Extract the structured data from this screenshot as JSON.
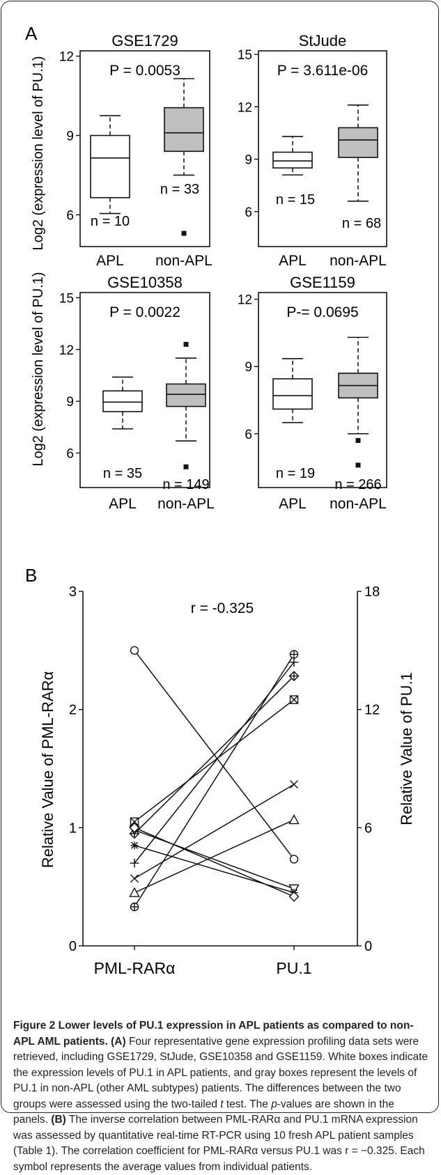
{
  "panels": {
    "A": "A",
    "B": "B"
  },
  "shared": {
    "y_label_A": "Log2 (expression level of PU.1)",
    "x_categories": [
      "APL",
      "non-APL"
    ]
  },
  "chart_data": [
    {
      "type": "box",
      "title": "GSE1729",
      "ylim": [
        4.8,
        12.2
      ],
      "yticks": [
        6,
        9,
        12
      ],
      "categories": [
        "APL",
        "non-APL"
      ],
      "boxes": [
        {
          "category": "APL",
          "fill": "#ffffff",
          "min": 6.05,
          "q1": 6.65,
          "median": 8.15,
          "q3": 9.0,
          "max": 9.75,
          "outliers": [],
          "n_label": "n = 10"
        },
        {
          "category": "non-APL",
          "fill": "#bfbfbf",
          "min": 7.5,
          "q1": 8.4,
          "median": 9.1,
          "q3": 10.05,
          "max": 11.15,
          "outliers": [
            5.3
          ],
          "n_label": "n = 33"
        }
      ],
      "p_label": "P = 0.0053"
    },
    {
      "type": "box",
      "title": "StJude",
      "ylim": [
        4.0,
        15.2
      ],
      "yticks": [
        6,
        9,
        12,
        15
      ],
      "categories": [
        "APL",
        "non-APL"
      ],
      "boxes": [
        {
          "category": "APL",
          "fill": "#ffffff",
          "min": 8.1,
          "q1": 8.5,
          "median": 8.9,
          "q3": 9.4,
          "max": 10.3,
          "outliers": [],
          "n_label": "n = 15"
        },
        {
          "category": "non-APL",
          "fill": "#bfbfbf",
          "min": 6.6,
          "q1": 9.1,
          "median": 10.1,
          "q3": 10.8,
          "max": 12.1,
          "outliers": [],
          "n_label": "n = 68"
        }
      ],
      "p_label": "P = 3.611e-06"
    },
    {
      "type": "box",
      "title": "GSE10358",
      "ylim": [
        4.0,
        15.3
      ],
      "yticks": [
        6,
        9,
        12,
        15
      ],
      "categories": [
        "APL",
        "non-APL"
      ],
      "boxes": [
        {
          "category": "APL",
          "fill": "#ffffff",
          "min": 7.4,
          "q1": 8.4,
          "median": 8.95,
          "q3": 9.6,
          "max": 10.4,
          "outliers": [],
          "n_label": "n = 35"
        },
        {
          "category": "non-APL",
          "fill": "#bfbfbf",
          "min": 6.7,
          "q1": 8.7,
          "median": 9.4,
          "q3": 10.0,
          "max": 11.5,
          "outliers": [
            12.3,
            5.2
          ],
          "n_label": "n = 149"
        }
      ],
      "p_label": "P = 0.0022"
    },
    {
      "type": "box",
      "title": "GSE1159",
      "ylim": [
        3.6,
        12.3
      ],
      "yticks": [
        6,
        9,
        12
      ],
      "categories": [
        "APL",
        "non-APL"
      ],
      "boxes": [
        {
          "category": "APL",
          "fill": "#ffffff",
          "min": 6.5,
          "q1": 7.1,
          "median": 7.7,
          "q3": 8.45,
          "max": 9.35,
          "outliers": [],
          "n_label": "n = 19"
        },
        {
          "category": "non-APL",
          "fill": "#bfbfbf",
          "min": 6.0,
          "q1": 7.6,
          "median": 8.15,
          "q3": 8.7,
          "max": 10.3,
          "outliers": [
            5.7,
            4.6
          ],
          "n_label": "n = 266"
        }
      ],
      "p_label": "P-= 0.0695"
    },
    {
      "type": "line",
      "categories": [
        "PML-RARα",
        "PU.1"
      ],
      "ylabel": "Relative Value of PML-RARα",
      "ylim": [
        0,
        3
      ],
      "yticks": [
        0,
        1,
        2,
        3
      ],
      "y2label": "Relative Value of PU.1",
      "y2lim": [
        0,
        18
      ],
      "y2ticks": [
        0,
        6,
        12,
        18
      ],
      "annotation": "r = -0.325",
      "series": [
        {
          "marker": "circle",
          "values": [
            2.5,
            4.4
          ]
        },
        {
          "marker": "circle-plus",
          "values": [
            0.33,
            14.8
          ]
        },
        {
          "marker": "plus",
          "values": [
            0.7,
            14.4
          ]
        },
        {
          "marker": "diamond-plus",
          "values": [
            0.95,
            13.7
          ]
        },
        {
          "marker": "square-x",
          "values": [
            1.05,
            12.5
          ]
        },
        {
          "marker": "x",
          "values": [
            0.57,
            8.2
          ]
        },
        {
          "marker": "triangle",
          "values": [
            0.45,
            6.4
          ]
        },
        {
          "marker": "triangle-down",
          "values": [
            0.98,
            2.9
          ]
        },
        {
          "marker": "asterisk",
          "values": [
            0.85,
            2.7
          ]
        },
        {
          "marker": "diamond",
          "values": [
            1.0,
            2.5
          ]
        }
      ]
    }
  ],
  "caption": {
    "title": "Figure 2 Lower levels of PU.1 expression in APL patients as compared to non-APL AML patients.",
    "a_label": "(A)",
    "a_text_1": " Four representative gene expression profiling data sets were retrieved, including GSE1729, StJude, GSE10358 and GSE1159. White boxes indicate the expression levels of PU.1 in APL patients, and gray boxes represent the levels of PU.1 in non-APL (other AML subtypes) patients. The differences between the two groups were assessed using the two-tailed ",
    "a_t": "t",
    "a_text_2": " test. The ",
    "a_p": "p",
    "a_text_3": "-values are shown in the panels. ",
    "b_label": "(B)",
    "b_text": " The inverse correlation between PML-RARα and PU.1 mRNA expression was assessed by quantitative real-time RT-PCR using 10 fresh APL patient samples (Table 1). The correlation coefficient for PML-RARα versus PU.1 was r = −0.325. Each symbol represents the average values from individual patients."
  }
}
